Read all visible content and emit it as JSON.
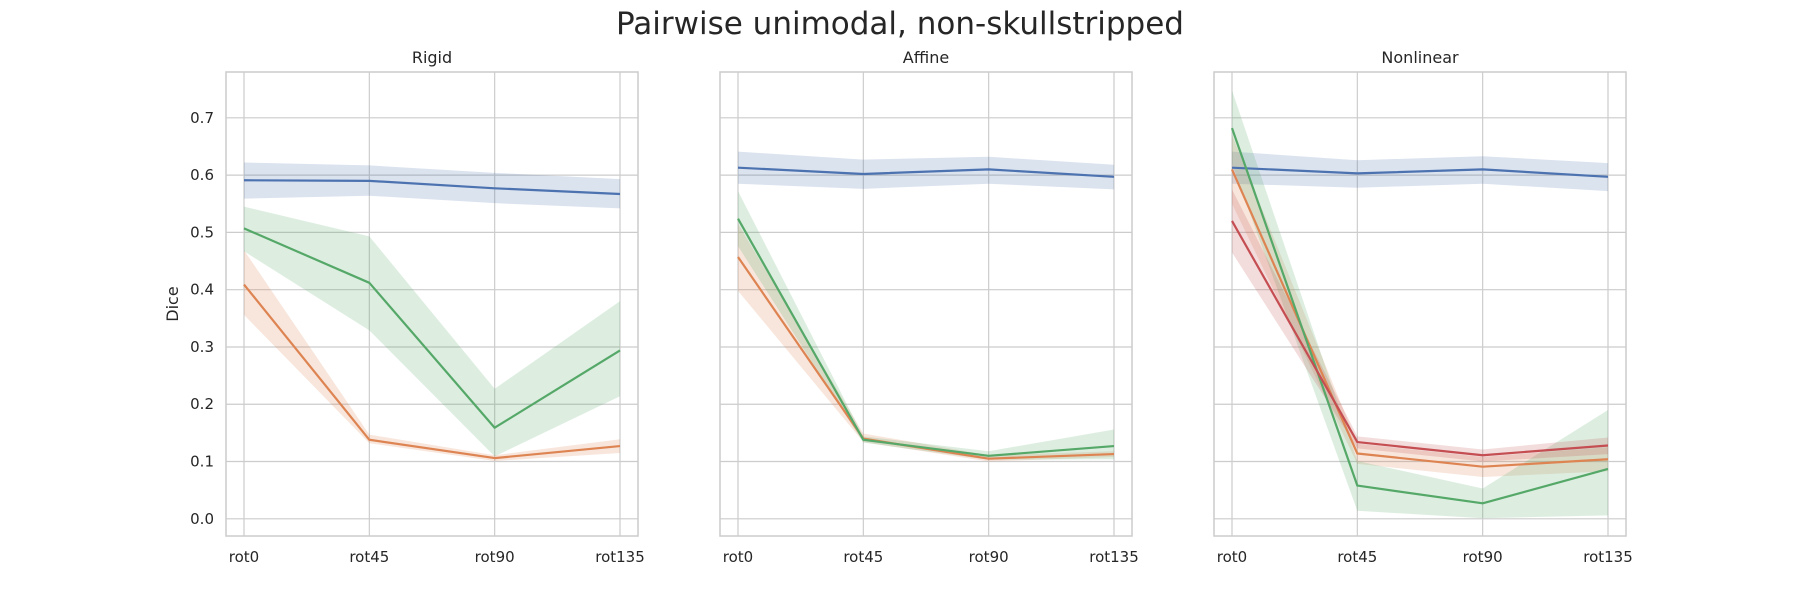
{
  "figure": {
    "title": "Pairwise unimodal, non-skullstripped"
  },
  "colors": {
    "blue": "#4c72b0",
    "orange": "#dd8452",
    "green": "#55a868",
    "red": "#c44e52",
    "grid": "#cccccc",
    "frame": "#cccccc"
  },
  "chart_data": [
    {
      "type": "line",
      "title": "Rigid",
      "xlabel": "",
      "ylabel": "Dice",
      "categories": [
        "rot0",
        "rot45",
        "rot90",
        "rot135"
      ],
      "ylim": [
        -0.03,
        0.78
      ],
      "yticks": [
        0.0,
        0.1,
        0.2,
        0.3,
        0.4,
        0.5,
        0.6,
        0.7
      ],
      "ytick_labels": [
        "0.0",
        "0.1",
        "0.2",
        "0.3",
        "0.4",
        "0.5",
        "0.6",
        "0.7"
      ],
      "grid": true,
      "series": [
        {
          "color": "blue",
          "values": [
            0.591,
            0.59,
            0.577,
            0.567
          ],
          "lower": [
            0.559,
            0.564,
            0.551,
            0.542
          ],
          "upper": [
            0.622,
            0.617,
            0.604,
            0.593
          ]
        },
        {
          "color": "orange",
          "values": [
            0.409,
            0.138,
            0.106,
            0.127
          ],
          "lower": [
            0.356,
            0.132,
            0.101,
            0.115
          ],
          "upper": [
            0.469,
            0.147,
            0.111,
            0.139
          ]
        },
        {
          "color": "green",
          "values": [
            0.507,
            0.412,
            0.159,
            0.294
          ],
          "lower": [
            0.467,
            0.329,
            0.109,
            0.214
          ],
          "upper": [
            0.545,
            0.493,
            0.227,
            0.38
          ]
        }
      ]
    },
    {
      "type": "line",
      "title": "Affine",
      "xlabel": "",
      "ylabel": "",
      "categories": [
        "rot0",
        "rot45",
        "rot90",
        "rot135"
      ],
      "ylim": [
        -0.03,
        0.78
      ],
      "yticks": [
        0.0,
        0.1,
        0.2,
        0.3,
        0.4,
        0.5,
        0.6,
        0.7
      ],
      "grid": true,
      "series": [
        {
          "color": "blue",
          "values": [
            0.613,
            0.602,
            0.61,
            0.597
          ],
          "lower": [
            0.585,
            0.576,
            0.585,
            0.575
          ],
          "upper": [
            0.641,
            0.627,
            0.632,
            0.618
          ]
        },
        {
          "color": "orange",
          "values": [
            0.457,
            0.14,
            0.105,
            0.113
          ],
          "lower": [
            0.398,
            0.134,
            0.1,
            0.108
          ],
          "upper": [
            0.515,
            0.149,
            0.111,
            0.118
          ]
        },
        {
          "color": "green",
          "values": [
            0.524,
            0.138,
            0.11,
            0.127
          ],
          "lower": [
            0.476,
            0.133,
            0.103,
            0.104
          ],
          "upper": [
            0.572,
            0.144,
            0.118,
            0.156
          ]
        }
      ]
    },
    {
      "type": "line",
      "title": "Nonlinear",
      "xlabel": "",
      "ylabel": "",
      "categories": [
        "rot0",
        "rot45",
        "rot90",
        "rot135"
      ],
      "ylim": [
        -0.03,
        0.78
      ],
      "yticks": [
        0.0,
        0.1,
        0.2,
        0.3,
        0.4,
        0.5,
        0.6,
        0.7
      ],
      "grid": true,
      "series": [
        {
          "color": "blue",
          "values": [
            0.613,
            0.603,
            0.61,
            0.597
          ],
          "lower": [
            0.585,
            0.578,
            0.585,
            0.572
          ],
          "upper": [
            0.641,
            0.626,
            0.633,
            0.621
          ]
        },
        {
          "color": "orange",
          "values": [
            0.61,
            0.114,
            0.091,
            0.104
          ],
          "lower": [
            0.55,
            0.096,
            0.073,
            0.083
          ],
          "upper": [
            0.67,
            0.131,
            0.108,
            0.125
          ]
        },
        {
          "color": "green",
          "values": [
            0.682,
            0.058,
            0.027,
            0.087
          ],
          "lower": [
            0.62,
            0.014,
            0.001,
            0.006
          ],
          "upper": [
            0.748,
            0.101,
            0.053,
            0.19
          ]
        },
        {
          "color": "red",
          "values": [
            0.52,
            0.134,
            0.111,
            0.128
          ],
          "lower": [
            0.465,
            0.123,
            0.1,
            0.113
          ],
          "upper": [
            0.575,
            0.144,
            0.121,
            0.142
          ]
        }
      ]
    }
  ]
}
